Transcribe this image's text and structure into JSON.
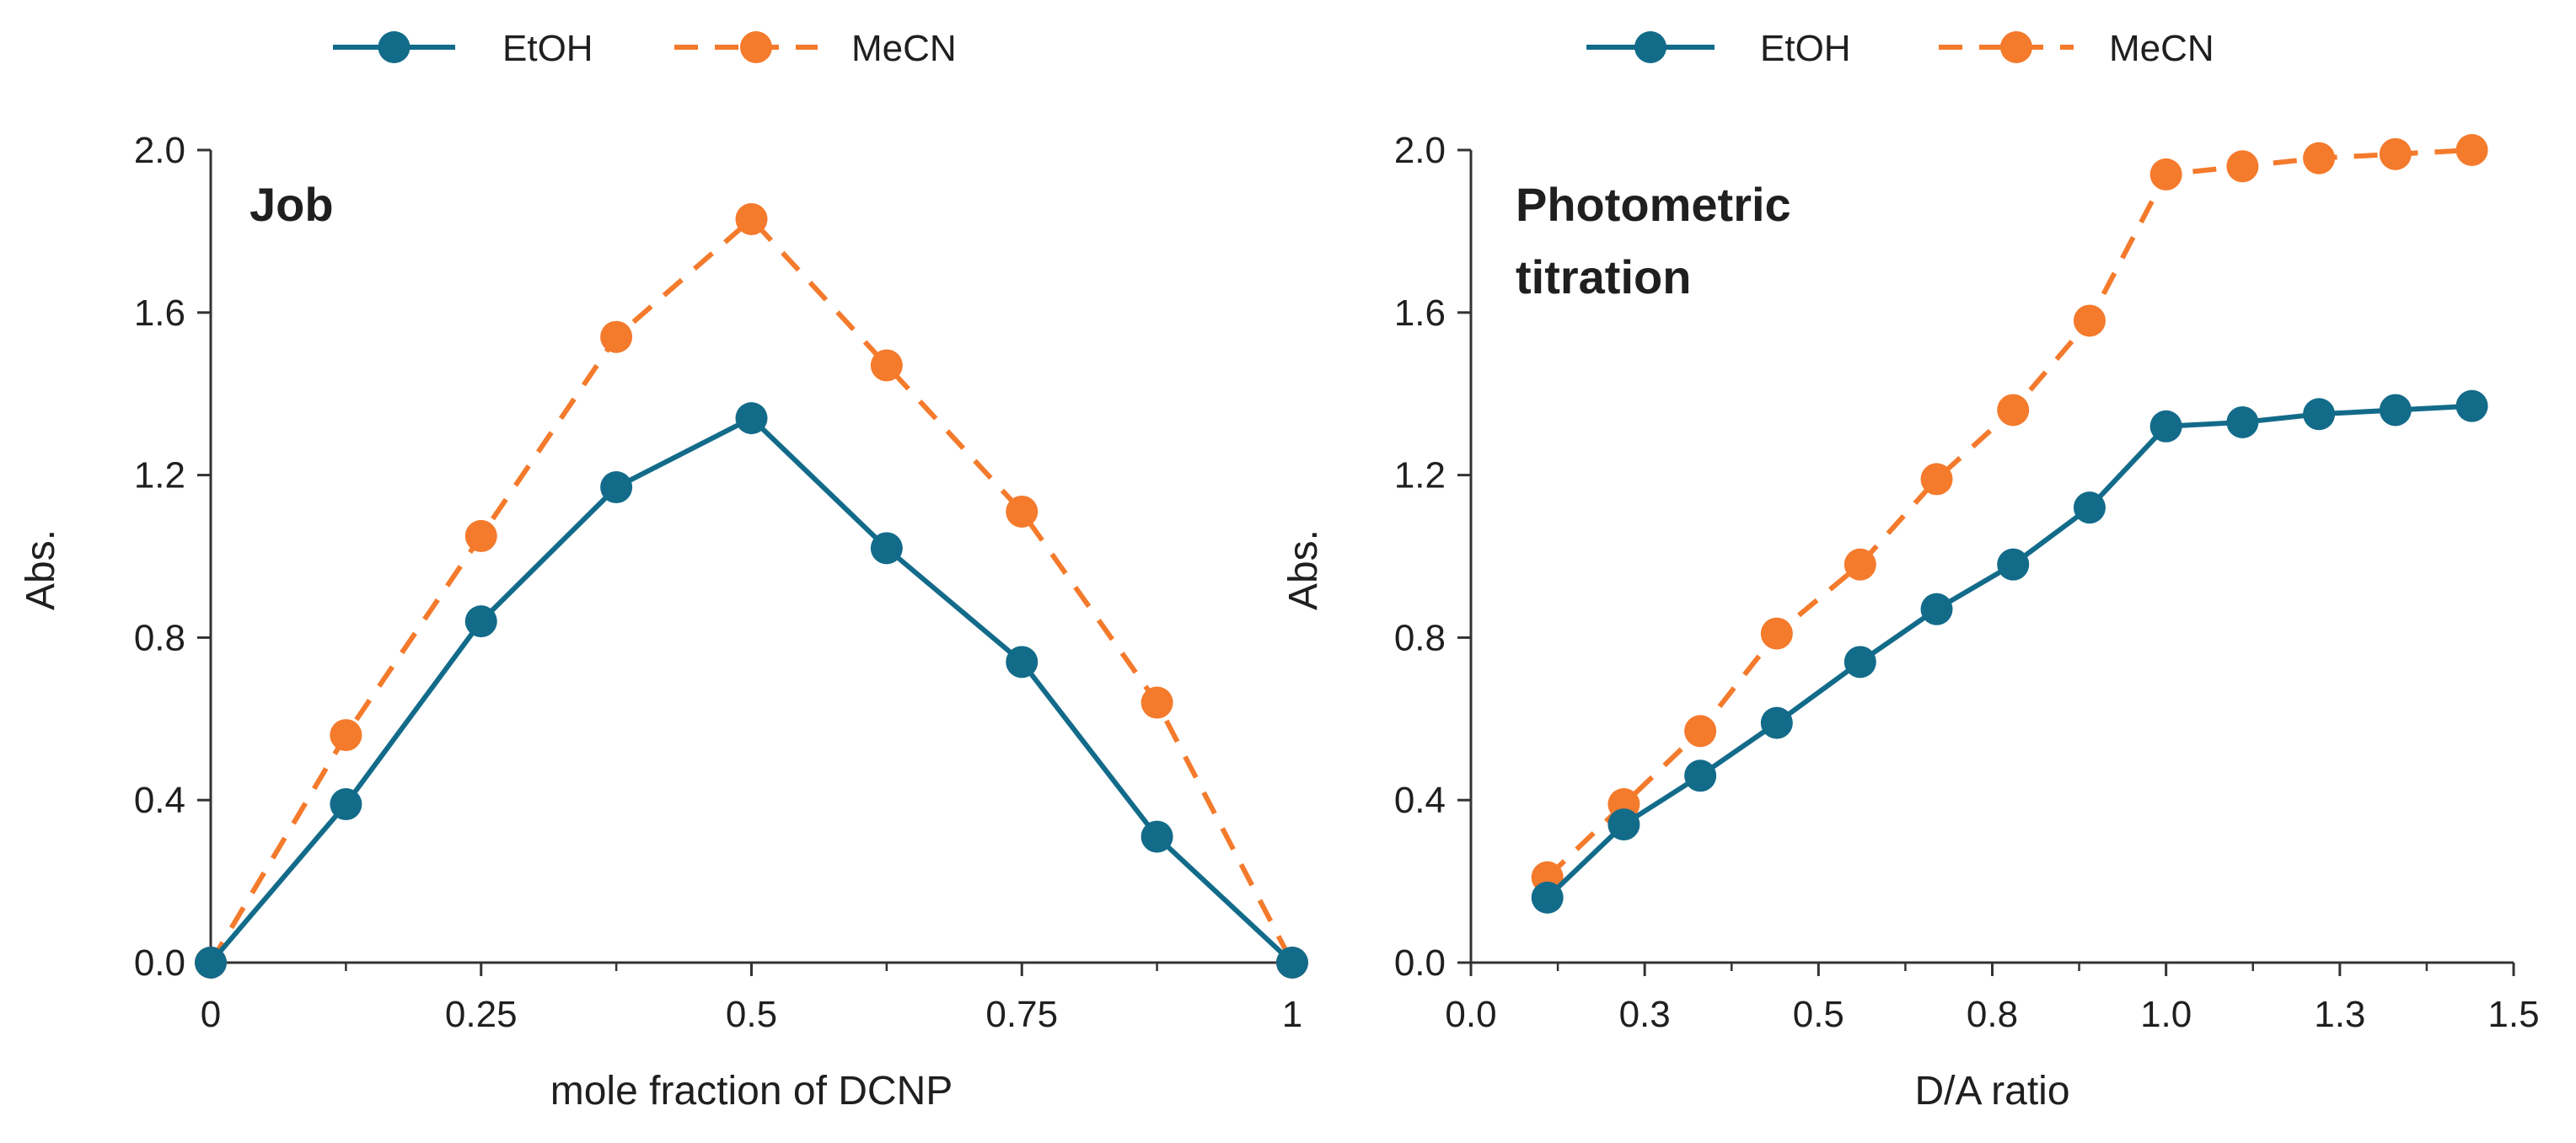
{
  "chart_data": [
    {
      "type": "line",
      "title": "Job",
      "xlabel": "mole fraction of DCNP",
      "ylabel": "Abs.",
      "xlim": [
        0,
        1
      ],
      "ylim": [
        0,
        2.0
      ],
      "xticks": [
        0,
        0.25,
        0.5,
        0.75,
        1
      ],
      "xtick_labels": [
        "0",
        "0.25",
        "0.5",
        "0.75",
        "1"
      ],
      "xminor": [
        0.125,
        0.375,
        0.625,
        0.875
      ],
      "yticks": [
        0,
        0.4,
        0.8,
        1.2,
        1.6,
        2.0
      ],
      "ytick_labels": [
        "0.0",
        "0.4",
        "0.8",
        "1.2",
        "1.6",
        "2.0"
      ],
      "legend_position": "top",
      "series": [
        {
          "name": "EtOH",
          "color": "#136b8a",
          "style": "solid",
          "x": [
            0,
            0.125,
            0.25,
            0.375,
            0.5,
            0.625,
            0.75,
            0.875,
            1
          ],
          "values": [
            0.0,
            0.39,
            0.84,
            1.17,
            1.34,
            1.02,
            0.74,
            0.31,
            0.0
          ]
        },
        {
          "name": "MeCN",
          "color": "#f47a2c",
          "style": "dashed",
          "x": [
            0,
            0.125,
            0.25,
            0.375,
            0.5,
            0.625,
            0.75,
            0.875,
            1
          ],
          "values": [
            0.0,
            0.56,
            1.05,
            1.54,
            1.83,
            1.47,
            1.11,
            0.64,
            0.0
          ]
        }
      ]
    },
    {
      "type": "line",
      "title": "Photometric titration",
      "title_lines": [
        "Photometric",
        "titration"
      ],
      "xlabel": "D/A ratio",
      "ylabel": "Abs.",
      "xlim": [
        0,
        1.5
      ],
      "ylim": [
        0,
        2.0
      ],
      "xticks": [
        0,
        0.25,
        0.5,
        0.75,
        1.0,
        1.25,
        1.5
      ],
      "xtick_labels": [
        "0.0",
        "0.3",
        "0.5",
        "0.8",
        "1.0",
        "1.3",
        "1.5"
      ],
      "xminor": [
        0.125,
        0.375,
        0.625,
        0.875,
        1.125,
        1.375
      ],
      "yticks": [
        0,
        0.4,
        0.8,
        1.2,
        1.6,
        2.0
      ],
      "ytick_labels": [
        "0.0",
        "0.4",
        "0.8",
        "1.2",
        "1.6",
        "2.0"
      ],
      "legend_position": "top",
      "series": [
        {
          "name": "EtOH",
          "color": "#136b8a",
          "style": "solid",
          "x": [
            0.11,
            0.22,
            0.33,
            0.44,
            0.56,
            0.67,
            0.78,
            0.89,
            1.0,
            1.11,
            1.22,
            1.33,
            1.44
          ],
          "values": [
            0.16,
            0.34,
            0.46,
            0.59,
            0.74,
            0.87,
            0.98,
            1.12,
            1.32,
            1.33,
            1.35,
            1.36,
            1.37
          ]
        },
        {
          "name": "MeCN",
          "color": "#f47a2c",
          "style": "dashed",
          "x": [
            0.11,
            0.22,
            0.33,
            0.44,
            0.56,
            0.67,
            0.78,
            0.89,
            1.0,
            1.11,
            1.22,
            1.33,
            1.44
          ],
          "values": [
            0.21,
            0.39,
            0.57,
            0.81,
            0.98,
            1.19,
            1.36,
            1.58,
            1.94,
            1.96,
            1.98,
            1.99,
            2.0
          ]
        }
      ]
    }
  ]
}
